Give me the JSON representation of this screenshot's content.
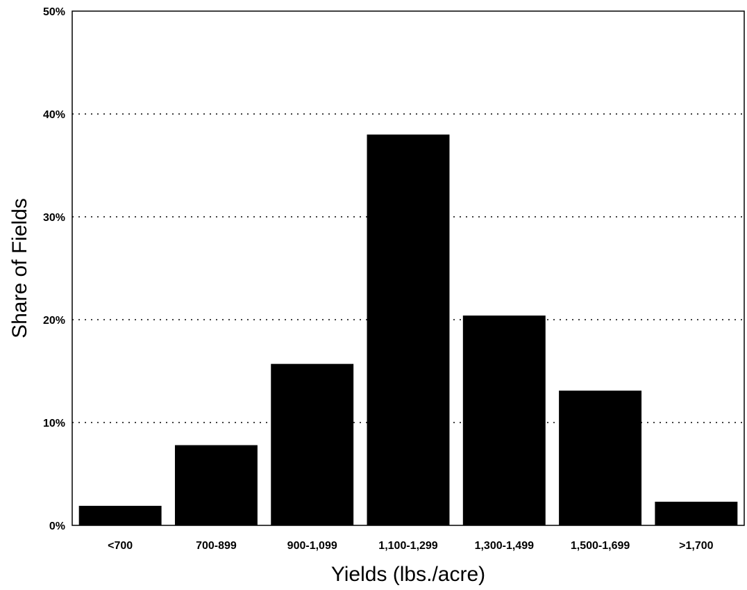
{
  "chart_data": {
    "type": "bar",
    "title": "",
    "xlabel": "Yields (lbs./acre)",
    "ylabel": "Share of Fields",
    "categories": [
      "<700",
      "700-899",
      "900-1,099",
      "1,100-1,299",
      "1,300-1,499",
      "1,500-1,699",
      ">1,700"
    ],
    "values": [
      1.9,
      7.8,
      15.7,
      38.0,
      20.4,
      13.1,
      2.3
    ],
    "ylim": [
      0,
      50
    ],
    "yticks": [
      0,
      10,
      20,
      30,
      40,
      50
    ],
    "ytick_labels": [
      "0%",
      "10%",
      "20%",
      "30%",
      "40%",
      "50%"
    ],
    "grid": true,
    "bar_color": "#000000"
  }
}
